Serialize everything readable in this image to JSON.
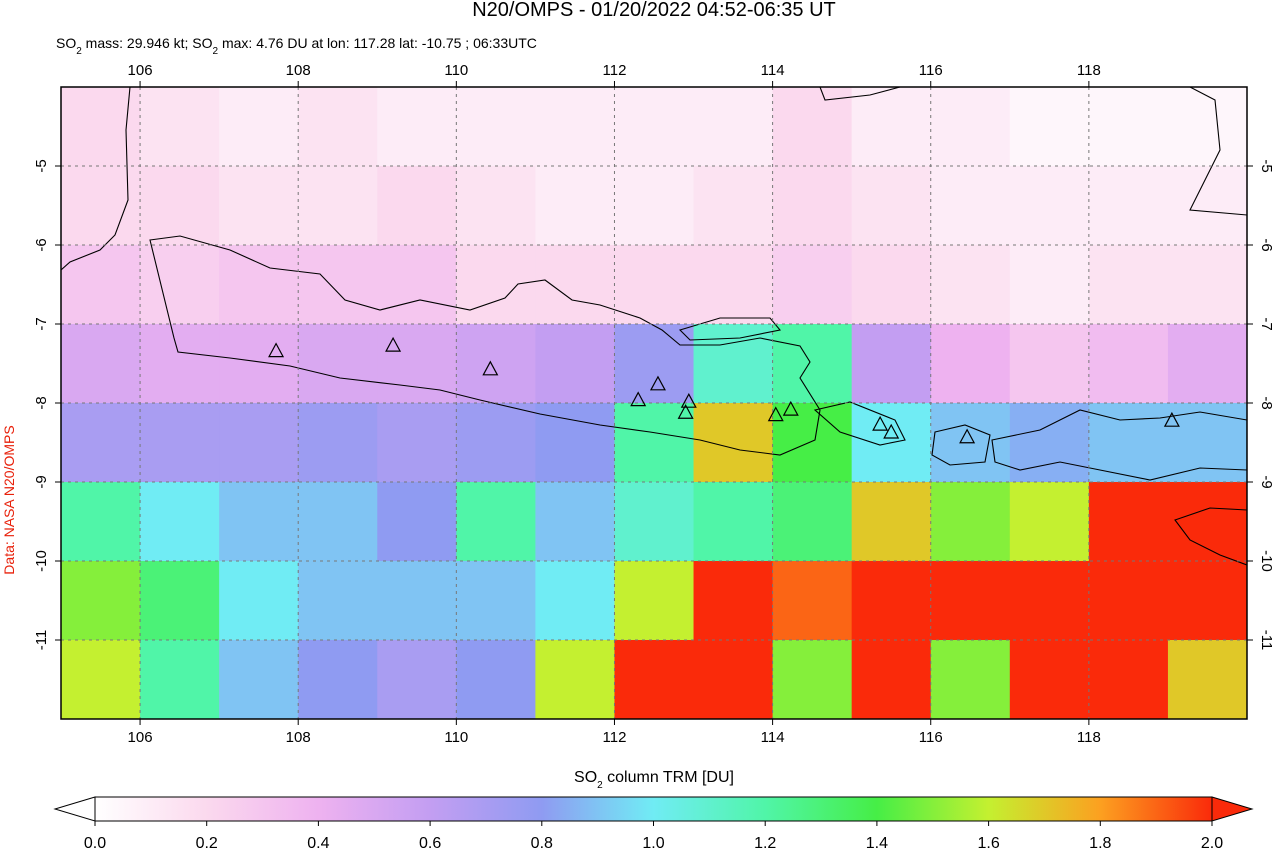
{
  "header": {
    "title": "N20/OMPS - 01/20/2022 04:52-06:35 UT",
    "subtitle_parts": [
      "SO",
      "2",
      " mass: 29.946 kt; SO",
      "2",
      " max: 4.76 DU at lon: 117.28 lat: -10.75 ; 06:33UTC"
    ]
  },
  "credit": "Data: NASA N20/OMPS",
  "map": {
    "xlim": [
      105,
      120
    ],
    "ylim": [
      -12,
      -4
    ],
    "xticks": [
      106,
      108,
      110,
      112,
      114,
      116,
      118
    ],
    "yticks": [
      -5,
      -6,
      -7,
      -8,
      -9,
      -10,
      -11
    ],
    "grid": true,
    "so2_rows": [
      [
        0.2,
        0.15,
        0.1,
        0.15,
        0.1,
        0.1,
        0.1,
        0.1,
        0.1,
        0.2,
        0.1,
        0.1,
        0.05,
        0.05,
        0.05
      ],
      [
        0.2,
        0.2,
        0.15,
        0.15,
        0.2,
        0.15,
        0.1,
        0.1,
        0.15,
        0.2,
        0.15,
        0.1,
        0.1,
        0.1,
        0.1
      ],
      [
        0.3,
        0.25,
        0.3,
        0.3,
        0.3,
        0.2,
        0.2,
        0.2,
        0.2,
        0.25,
        0.2,
        0.15,
        0.1,
        0.15,
        0.15
      ],
      [
        0.5,
        0.45,
        0.45,
        0.5,
        0.5,
        0.55,
        0.6,
        0.75,
        1.1,
        1.2,
        0.6,
        0.4,
        0.3,
        0.35,
        0.45
      ],
      [
        0.7,
        0.7,
        0.7,
        0.75,
        0.7,
        0.75,
        0.8,
        1.2,
        1.7,
        1.4,
        1.0,
        0.9,
        0.85,
        0.9,
        0.9
      ],
      [
        1.2,
        1.0,
        0.9,
        0.9,
        0.8,
        1.2,
        0.9,
        1.1,
        1.2,
        1.3,
        1.7,
        1.5,
        1.6,
        2.0,
        2.0
      ],
      [
        1.5,
        1.3,
        1.0,
        0.9,
        0.9,
        0.9,
        1.0,
        1.6,
        2.0,
        1.9,
        2.0,
        2.0,
        2.0,
        2.0,
        2.0
      ],
      [
        1.6,
        1.2,
        0.9,
        0.8,
        0.7,
        0.8,
        1.6,
        2.0,
        2.0,
        1.5,
        2.0,
        1.5,
        2.0,
        2.0,
        1.7
      ]
    ],
    "volcanoes": [
      {
        "lon": 107.72,
        "lat": -7.35
      },
      {
        "lon": 109.2,
        "lat": -7.28
      },
      {
        "lon": 110.43,
        "lat": -7.58
      },
      {
        "lon": 112.3,
        "lat": -7.97
      },
      {
        "lon": 112.55,
        "lat": -7.77
      },
      {
        "lon": 112.94,
        "lat": -7.99
      },
      {
        "lon": 112.9,
        "lat": -8.13
      },
      {
        "lon": 114.04,
        "lat": -8.16
      },
      {
        "lon": 114.23,
        "lat": -8.09
      },
      {
        "lon": 115.36,
        "lat": -8.28
      },
      {
        "lon": 115.5,
        "lat": -8.38
      },
      {
        "lon": 116.46,
        "lat": -8.44
      },
      {
        "lon": 119.05,
        "lat": -8.23
      }
    ]
  },
  "colorbar": {
    "label_parts": [
      "SO",
      "2",
      " column TRM [DU]"
    ],
    "ticks": [
      {
        "value": 0,
        "label": "0.0"
      },
      0.2,
      0.4,
      0.6,
      0.8,
      {
        "value": 1,
        "label": "1.0"
      },
      1.2,
      1.4,
      1.6,
      1.8,
      {
        "value": 2,
        "label": "2.0"
      }
    ],
    "colors": [
      "#ffffff",
      "#fbd9ee",
      "#eeb2f0",
      "#c39ef2",
      "#8f9bf2",
      "#70ecf4",
      "#50f5a8",
      "#46ee46",
      "#c4f030",
      "#fca020",
      "#fa2a0a"
    ],
    "under_color": "#ffffff",
    "over_color": "#fa2a0a"
  }
}
